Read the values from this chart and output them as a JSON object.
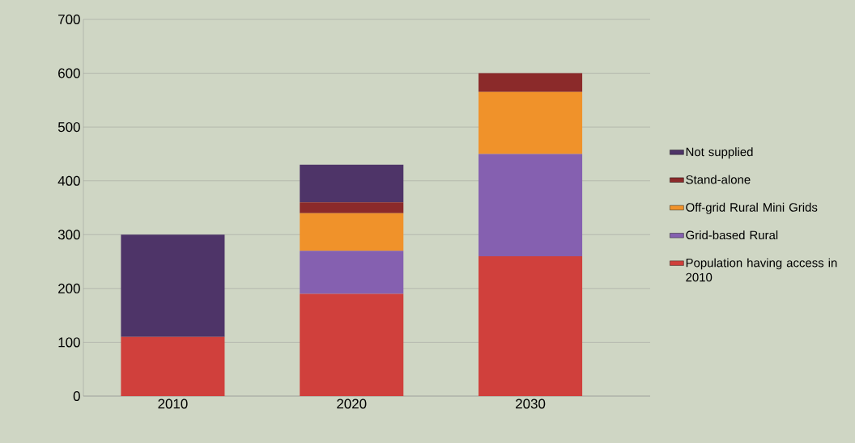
{
  "chart_data": {
    "type": "bar",
    "stacked": true,
    "categories": [
      "2010",
      "2020",
      "2030"
    ],
    "series": [
      {
        "name": "Population having access in 2010",
        "color": "#d0403c",
        "values": [
          110,
          190,
          260
        ]
      },
      {
        "name": "Grid-based Rural",
        "color": "#8560b0",
        "values": [
          0,
          80,
          190
        ]
      },
      {
        "name": "Off-grid Rural Mini Grids",
        "color": "#f0922a",
        "values": [
          0,
          70,
          115
        ]
      },
      {
        "name": "Stand-alone",
        "color": "#8b2a2a",
        "values": [
          0,
          20,
          35
        ]
      },
      {
        "name": "Not supplied",
        "color": "#4e3468",
        "values": [
          190,
          70,
          0
        ]
      }
    ],
    "ylim": [
      0,
      700
    ],
    "yticks": [
      0,
      100,
      200,
      300,
      400,
      500,
      600,
      700
    ],
    "grid": "y",
    "legend": "right"
  }
}
